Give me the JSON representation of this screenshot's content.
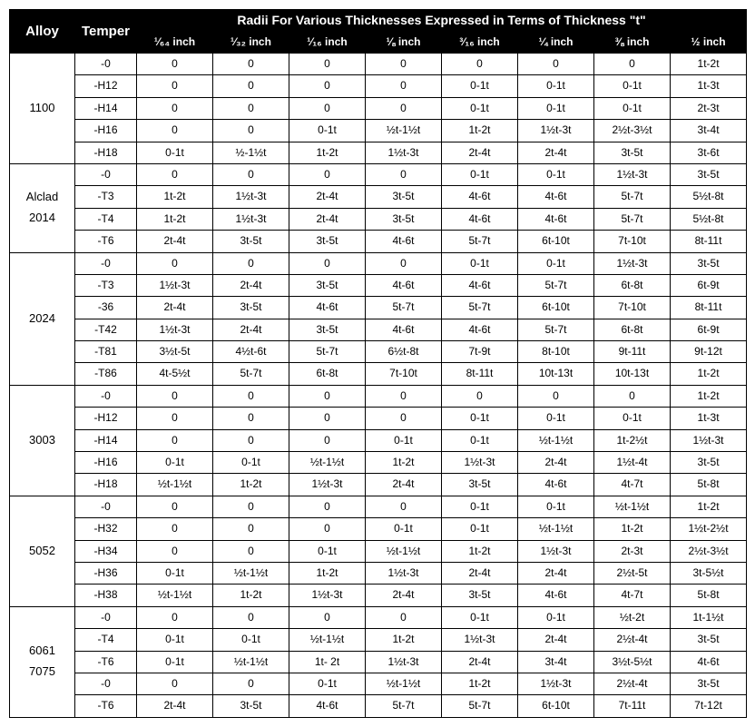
{
  "header": {
    "alloy": "Alloy",
    "temper": "Temper",
    "radii_title": "Radii For Various Thicknesses Expressed in Terms of Thickness \"t\"",
    "thickness_cols": [
      "¹⁄₆₄ inch",
      "¹⁄₃₂ inch",
      "¹⁄₁₆ inch",
      "⅛ inch",
      "³⁄₁₆ inch",
      "¼ inch",
      "⅜ inch",
      "½ inch"
    ]
  },
  "groups": [
    {
      "alloy_label": "1100",
      "rows": [
        {
          "temper": "-0",
          "v": [
            "0",
            "0",
            "0",
            "0",
            "0",
            "0",
            "0",
            "1t-2t"
          ]
        },
        {
          "temper": "-H12",
          "v": [
            "0",
            "0",
            "0",
            "0",
            "0-1t",
            "0-1t",
            "0-1t",
            "1t-3t"
          ]
        },
        {
          "temper": "-H14",
          "v": [
            "0",
            "0",
            "0",
            "0",
            "0-1t",
            "0-1t",
            "0-1t",
            "2t-3t"
          ]
        },
        {
          "temper": "-H16",
          "v": [
            "0",
            "0",
            "0-1t",
            "½t-1½t",
            "1t-2t",
            "1½t-3t",
            "2½t-3½t",
            "3t-4t"
          ]
        },
        {
          "temper": "-H18",
          "v": [
            "0-1t",
            "½-1½t",
            "1t-2t",
            "1½t-3t",
            "2t-4t",
            "2t-4t",
            "3t-5t",
            "3t-6t"
          ]
        }
      ]
    },
    {
      "alloy_label": "Alclad\n2014",
      "rows": [
        {
          "temper": "-0",
          "v": [
            "0",
            "0",
            "0",
            "0",
            "0-1t",
            "0-1t",
            "1½t-3t",
            "3t-5t"
          ]
        },
        {
          "temper": "-T3",
          "v": [
            "1t-2t",
            "1½t-3t",
            "2t-4t",
            "3t-5t",
            "4t-6t",
            "4t-6t",
            "5t-7t",
            "5½t-8t"
          ]
        },
        {
          "temper": "-T4",
          "v": [
            "1t-2t",
            "1½t-3t",
            "2t-4t",
            "3t-5t",
            "4t-6t",
            "4t-6t",
            "5t-7t",
            "5½t-8t"
          ]
        },
        {
          "temper": "-T6",
          "v": [
            "2t-4t",
            "3t-5t",
            "3t-5t",
            "4t-6t",
            "5t-7t",
            "6t-10t",
            "7t-10t",
            "8t-11t"
          ]
        }
      ]
    },
    {
      "alloy_label": "2024",
      "rows": [
        {
          "temper": "-0",
          "v": [
            "0",
            "0",
            "0",
            "0",
            "0-1t",
            "0-1t",
            "1½t-3t",
            "3t-5t"
          ]
        },
        {
          "temper": "-T3",
          "v": [
            "1½t-3t",
            "2t-4t",
            "3t-5t",
            "4t-6t",
            "4t-6t",
            "5t-7t",
            "6t-8t",
            "6t-9t"
          ]
        },
        {
          "temper": "-36",
          "v": [
            "2t-4t",
            "3t-5t",
            "4t-6t",
            "5t-7t",
            "5t-7t",
            "6t-10t",
            "7t-10t",
            "8t-11t"
          ]
        },
        {
          "temper": "-T42",
          "v": [
            "1½t-3t",
            "2t-4t",
            "3t-5t",
            "4t-6t",
            "4t-6t",
            "5t-7t",
            "6t-8t",
            "6t-9t"
          ]
        },
        {
          "temper": "-T81",
          "v": [
            "3½t-5t",
            "4½t-6t",
            "5t-7t",
            "6½t-8t",
            "7t-9t",
            "8t-10t",
            "9t-11t",
            "9t-12t"
          ]
        },
        {
          "temper": "-T86",
          "v": [
            "4t-5½t",
            "5t-7t",
            "6t-8t",
            "7t-10t",
            "8t-11t",
            "10t-13t",
            "10t-13t",
            "1t-2t"
          ]
        }
      ]
    },
    {
      "alloy_label": "3003",
      "rows": [
        {
          "temper": "-0",
          "v": [
            "0",
            "0",
            "0",
            "0",
            "0",
            "0",
            "0",
            "1t-2t"
          ]
        },
        {
          "temper": "-H12",
          "v": [
            "0",
            "0",
            "0",
            "0",
            "0-1t",
            "0-1t",
            "0-1t",
            "1t-3t"
          ]
        },
        {
          "temper": "-H14",
          "v": [
            "0",
            "0",
            "0",
            "0-1t",
            "0-1t",
            "½t-1½t",
            "1t-2½t",
            "1½t-3t"
          ]
        },
        {
          "temper": "-H16",
          "v": [
            "0-1t",
            "0-1t",
            "½t-1½t",
            "1t-2t",
            "1½t-3t",
            "2t-4t",
            "1½t-4t",
            "3t-5t"
          ]
        },
        {
          "temper": "-H18",
          "v": [
            "½t-1½t",
            "1t-2t",
            "1½t-3t",
            "2t-4t",
            "3t-5t",
            "4t-6t",
            "4t-7t",
            "5t-8t"
          ]
        }
      ]
    },
    {
      "alloy_label": "5052",
      "rows": [
        {
          "temper": "-0",
          "v": [
            "0",
            "0",
            "0",
            "0",
            "0-1t",
            "0-1t",
            "½t-1½t",
            "1t-2t"
          ]
        },
        {
          "temper": "-H32",
          "v": [
            "0",
            "0",
            "0",
            "0-1t",
            "0-1t",
            "½t-1½t",
            "1t-2t",
            "1½t-2½t"
          ]
        },
        {
          "temper": "-H34",
          "v": [
            "0",
            "0",
            "0-1t",
            "½t-1½t",
            "1t-2t",
            "1½t-3t",
            "2t-3t",
            "2½t-3½t"
          ]
        },
        {
          "temper": "-H36",
          "v": [
            "0-1t",
            "½t-1½t",
            "1t-2t",
            "1½t-3t",
            "2t-4t",
            "2t-4t",
            "2½t-5t",
            "3t-5½t"
          ]
        },
        {
          "temper": "-H38",
          "v": [
            "½t-1½t",
            "1t-2t",
            "1½t-3t",
            "2t-4t",
            "3t-5t",
            "4t-6t",
            "4t-7t",
            "5t-8t"
          ]
        }
      ]
    },
    {
      "alloy_label": "6061\n7075",
      "rows": [
        {
          "temper": "-0",
          "v": [
            "0",
            "0",
            "0",
            "0",
            "0-1t",
            "0-1t",
            "½t-2t",
            "1t-1½t"
          ]
        },
        {
          "temper": "-T4",
          "v": [
            "0-1t",
            "0-1t",
            "½t-1½t",
            "1t-2t",
            "1½t-3t",
            "2t-4t",
            "2½t-4t",
            "3t-5t"
          ]
        },
        {
          "temper": "-T6",
          "v": [
            "0-1t",
            "½t-1½t",
            "1t- 2t",
            "1½t-3t",
            "2t-4t",
            "3t-4t",
            "3½t-5½t",
            "4t-6t"
          ]
        },
        {
          "temper": "-0",
          "v": [
            "0",
            "0",
            "0-1t",
            "½t-1½t",
            "1t-2t",
            "1½t-3t",
            "2½t-4t",
            "3t-5t"
          ]
        },
        {
          "temper": "-T6",
          "v": [
            "2t-4t",
            "3t-5t",
            "4t-6t",
            "5t-7t",
            "5t-7t",
            "6t-10t",
            "7t-11t",
            "7t-12t"
          ]
        }
      ]
    }
  ]
}
